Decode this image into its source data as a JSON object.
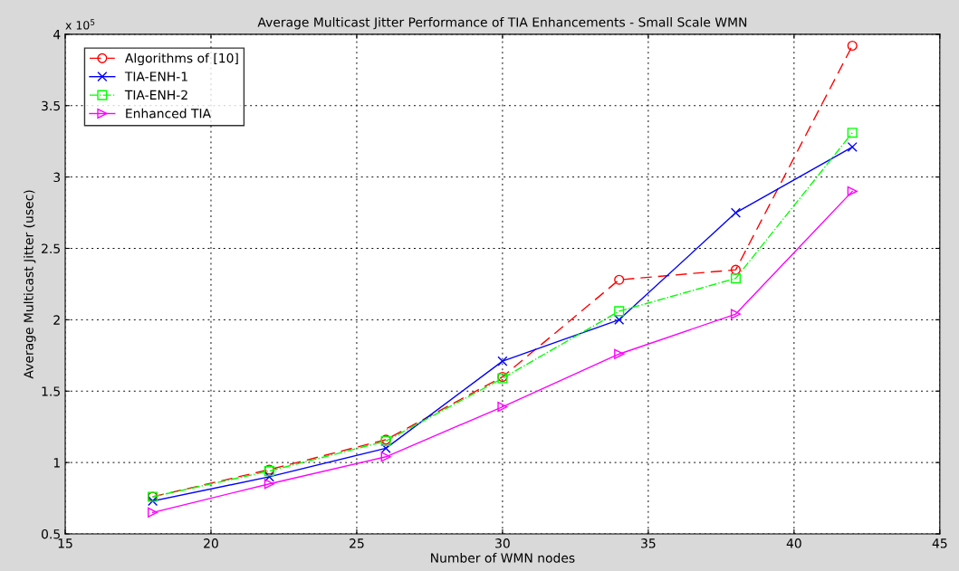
{
  "chart_data": {
    "type": "line",
    "title": "Average Multicast Jitter Performance of TIA Enhancements - Small Scale WMN",
    "xlabel": "Number of WMN nodes",
    "ylabel": "Average Multicast Jitter (usec)",
    "x": [
      18,
      22,
      26,
      30,
      34,
      38,
      42
    ],
    "series": [
      {
        "name": "Algorithms of [10]",
        "color": "#ff0000",
        "marker": "circle",
        "line_style": "dashed",
        "values": [
          0.76,
          0.95,
          1.16,
          1.6,
          2.28,
          2.35,
          3.92
        ]
      },
      {
        "name": "TIA-ENH-1",
        "color": "#0000ff",
        "marker": "cross",
        "line_style": "solid",
        "values": [
          0.73,
          0.9,
          1.1,
          1.71,
          2.0,
          2.75,
          3.21
        ]
      },
      {
        "name": "TIA-ENH-2",
        "color": "#00ff00",
        "marker": "square",
        "line_style": "dashdot",
        "values": [
          0.76,
          0.94,
          1.15,
          1.59,
          2.06,
          2.29,
          3.31
        ]
      },
      {
        "name": "Enhanced TIA",
        "color": "#ff00ff",
        "marker": "triangle",
        "line_style": "solid",
        "values": [
          0.65,
          0.85,
          1.04,
          1.39,
          1.76,
          2.04,
          2.9
        ]
      }
    ],
    "xlim": [
      15,
      45
    ],
    "xticks": [
      15,
      20,
      25,
      30,
      35,
      40,
      45
    ],
    "ylim": [
      0.5,
      4
    ],
    "yticks": [
      0.5,
      1,
      1.5,
      2,
      2.5,
      3,
      3.5,
      4
    ],
    "annotations": [
      "x 10$^{5}$"
    ],
    "grid": true,
    "legend": "top left"
  }
}
